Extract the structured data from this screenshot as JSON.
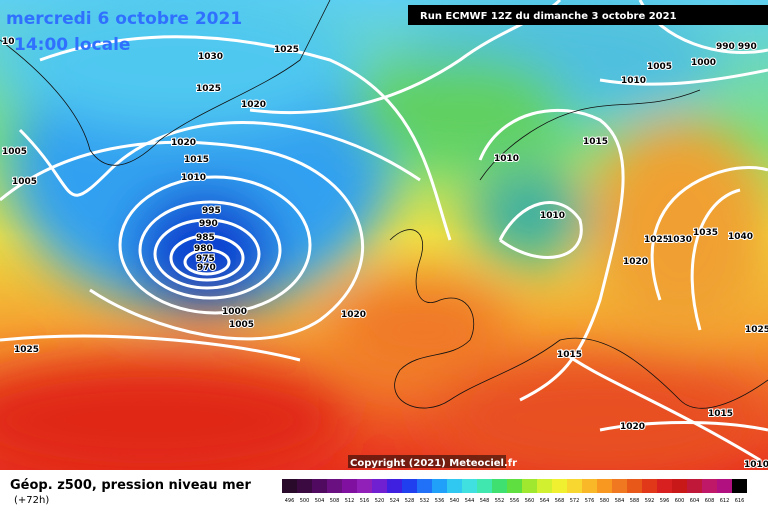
{
  "header": {
    "valid": "mercredi 6 octobre 2021",
    "local_time": "14:00 locale",
    "run": "Run ECMWF 12Z du dimanche 3 octobre 2021",
    "copyright": "Copyright (2021) Meteociel.fr"
  },
  "footer": {
    "title": "Géop. z500, pression niveau mer",
    "lead": "(+72h)"
  },
  "isobar_labels": [
    "10",
    "1025",
    "1030",
    "1025",
    "1020",
    "1020",
    "1015",
    "1010",
    "1005",
    "1005",
    "995",
    "990",
    "985",
    "980",
    "975",
    "970",
    "1000",
    "1005",
    "1020",
    "1025",
    "1010",
    "1015",
    "1010",
    "1005",
    "1000",
    "990 990",
    "1010",
    "1025",
    "1030",
    "1035",
    "1040",
    "1020",
    "1015",
    "1025",
    "1015",
    "1020",
    "1010"
  ],
  "scale_labels": [
    "496",
    "500",
    "504",
    "508",
    "512",
    "516",
    "520",
    "524",
    "528",
    "532",
    "536",
    "540",
    "544",
    "548",
    "552",
    "556",
    "560",
    "564",
    "568",
    "572",
    "576",
    "580",
    "584",
    "588",
    "592",
    "596",
    "600",
    "604",
    "608",
    "612",
    "616"
  ]
}
